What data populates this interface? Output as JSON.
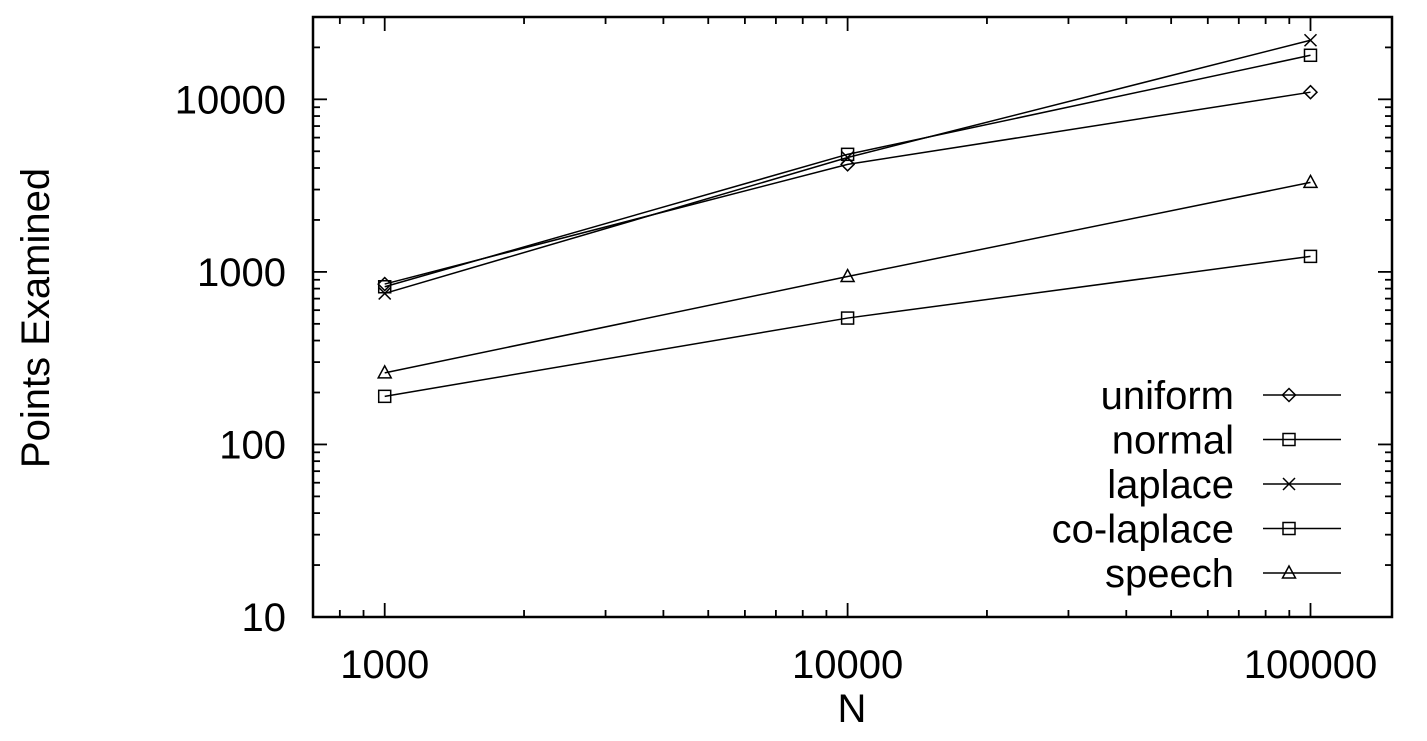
{
  "chart_data": {
    "type": "line",
    "xlabel": "N",
    "ylabel": "Points Examined",
    "x_scale": "log",
    "y_scale": "log",
    "xlim": [
      700,
      150000
    ],
    "ylim": [
      10,
      30000
    ],
    "x_ticks": [
      1000,
      10000,
      100000
    ],
    "x_tick_labels": [
      "1000",
      "10000",
      "100000"
    ],
    "y_ticks": [
      10,
      100,
      1000,
      10000
    ],
    "y_tick_labels": [
      "10",
      "100",
      "1000",
      "10000"
    ],
    "grid": false,
    "legend_position": "bottom-right",
    "x": [
      1000,
      10000,
      100000
    ],
    "series": [
      {
        "name": "uniform",
        "marker": "diamond",
        "values": [
          850,
          4200,
          11000
        ]
      },
      {
        "name": "normal",
        "marker": "square",
        "values": [
          820,
          4800,
          18000
        ]
      },
      {
        "name": "laplace",
        "marker": "cross",
        "values": [
          750,
          4600,
          22000
        ]
      },
      {
        "name": "co-laplace",
        "marker": "square",
        "values": [
          190,
          540,
          1230
        ]
      },
      {
        "name": "speech",
        "marker": "triangle",
        "values": [
          260,
          940,
          3300
        ]
      }
    ]
  }
}
